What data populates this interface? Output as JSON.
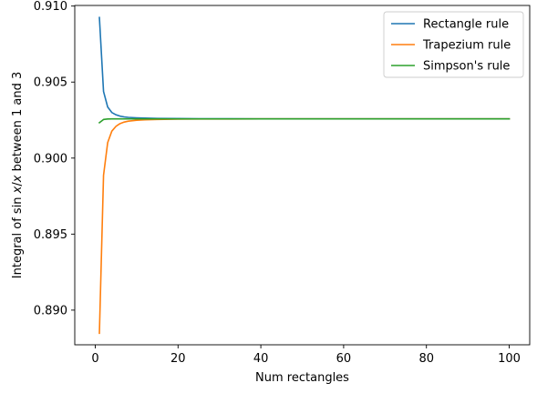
{
  "chart_data": {
    "type": "line",
    "title": "",
    "xlabel": "Num rectangles",
    "ylabel": "Integral of sin x/x between 1 and 3",
    "ylabel_parts": {
      "prefix": "Integral of sin ",
      "x1": "x",
      "slash": "/",
      "x2": "x",
      "suffix": " between 1 and 3"
    },
    "xlim": [
      -4.95,
      104.95
    ],
    "ylim": [
      0.88772,
      0.91004
    ],
    "xticks": [
      0,
      20,
      40,
      60,
      80,
      100
    ],
    "xtick_labels": [
      "0",
      "20",
      "40",
      "60",
      "80",
      "100"
    ],
    "yticks": [
      0.89,
      0.895,
      0.9,
      0.905,
      0.91
    ],
    "ytick_labels": [
      "0.890",
      "0.895",
      "0.900",
      "0.905",
      "0.910"
    ],
    "grid": false,
    "legend_position": "top-right",
    "series": [
      {
        "name": "Rectangle rule",
        "color": "#1f77b4",
        "x": [
          1,
          2,
          3,
          4,
          5,
          6,
          7,
          8,
          10,
          12,
          15,
          20,
          25,
          30,
          40,
          50,
          60,
          70,
          80,
          90,
          100
        ],
        "y": [
          0.90925,
          0.90438,
          0.90336,
          0.903,
          0.90285,
          0.90276,
          0.90271,
          0.90268,
          0.90265,
          0.90263,
          0.90261,
          0.9026,
          0.90259,
          0.90259,
          0.90258,
          0.90258,
          0.90258,
          0.90258,
          0.90258,
          0.90258,
          0.90258
        ]
      },
      {
        "name": "Trapezium rule",
        "color": "#ff7f0e",
        "x": [
          1,
          2,
          3,
          4,
          5,
          6,
          7,
          8,
          10,
          12,
          15,
          20,
          25,
          30,
          40,
          50,
          60,
          70,
          80,
          90,
          100
        ],
        "y": [
          0.88848,
          0.89887,
          0.90102,
          0.90177,
          0.90209,
          0.90227,
          0.90237,
          0.90243,
          0.90249,
          0.90252,
          0.90254,
          0.90256,
          0.90257,
          0.90257,
          0.90258,
          0.90258,
          0.90258,
          0.90258,
          0.90258,
          0.90258,
          0.90258
        ]
      },
      {
        "name": "Simpson's rule",
        "color": "#2ca02c",
        "x": [
          1,
          2,
          3,
          4,
          5,
          6,
          8,
          10,
          20,
          40,
          60,
          80,
          100
        ],
        "y": [
          0.90233,
          0.90254,
          0.90257,
          0.90258,
          0.90258,
          0.90258,
          0.90258,
          0.90258,
          0.90258,
          0.90258,
          0.90258,
          0.90258,
          0.90258
        ]
      }
    ]
  }
}
